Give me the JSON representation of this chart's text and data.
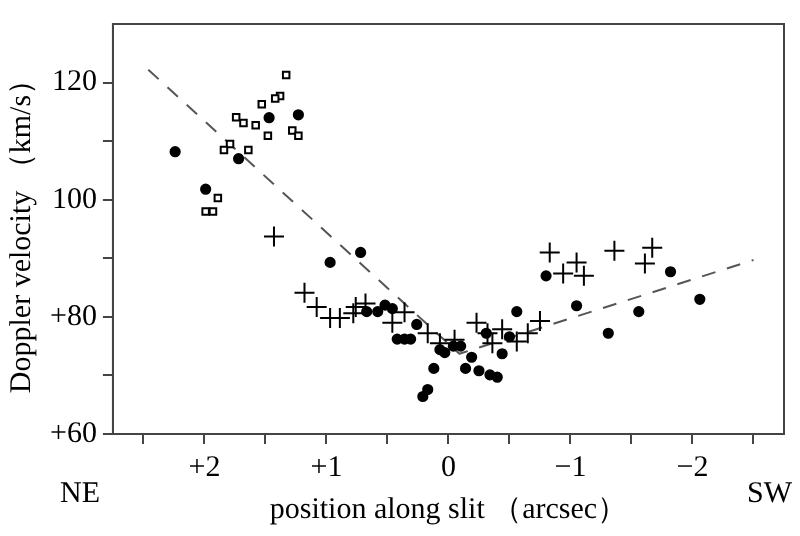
{
  "chart_data": {
    "type": "scatter",
    "xlabel": "position along slit （arcsec）",
    "ylabel": "Doppler velocity （km/s）",
    "xlim": [
      2.75,
      -2.75
    ],
    "ylim": [
      60,
      130
    ],
    "xticks": [
      {
        "value": 2.5,
        "label": null
      },
      {
        "value": 2,
        "label": "+2"
      },
      {
        "value": 1.5,
        "label": null
      },
      {
        "value": 1,
        "label": "+1"
      },
      {
        "value": 0.5,
        "label": null
      },
      0,
      {
        "value": -0.5,
        "label": null
      },
      {
        "value": -1,
        "label": "−1"
      },
      {
        "value": -1.5,
        "label": null
      },
      {
        "value": -2,
        "label": "−2"
      },
      {
        "value": -2.5,
        "label": null
      }
    ],
    "yticks": [
      {
        "value": 60,
        "label": "+60"
      },
      {
        "value": 70,
        "label": null
      },
      {
        "value": 80,
        "label": "+80"
      },
      {
        "value": 90,
        "label": null
      },
      100,
      {
        "value": 110,
        "label": null
      },
      120
    ],
    "grid": false,
    "legend": false,
    "annotations": [
      "NE",
      "SW"
    ],
    "series": [
      {
        "marker": "circle",
        "color": "#000000",
        "x": [
          2.24,
          1.47,
          1.23,
          1.72,
          1.99,
          0.72,
          0.97,
          0.67,
          0.58,
          0.52,
          0.46,
          0.26,
          0.42,
          0.36,
          0.31,
          0.07,
          0.03,
          -0.04,
          -0.1,
          -0.19,
          -0.14,
          -0.25,
          -0.34,
          -0.4,
          -0.44,
          -0.31,
          -0.5,
          -0.56,
          0.12,
          0.17,
          0.21,
          -0.8,
          -1.05,
          -1.31,
          -1.56,
          -1.82,
          -2.06
        ],
        "values": [
          108.2,
          114,
          114.5,
          107,
          101.8,
          91,
          89.3,
          80.9,
          80.9,
          82,
          81.4,
          78.7,
          76.2,
          76.2,
          76.2,
          74.4,
          73.9,
          75,
          75,
          73.1,
          71.2,
          70.8,
          70.1,
          69.7,
          73.7,
          77.2,
          76.6,
          80.9,
          71.2,
          67.6,
          66.4,
          87,
          81.9,
          77.2,
          80.9,
          87.7,
          83
        ]
      },
      {
        "marker": "square",
        "color": "#000000",
        "x": [
          1.33,
          1.38,
          1.42,
          1.53,
          1.74,
          1.68,
          1.58,
          1.48,
          1.28,
          1.23,
          1.79,
          1.84,
          1.64,
          1.89,
          1.99,
          1.93
        ],
        "values": [
          121.3,
          117.7,
          117.3,
          116.3,
          114.1,
          113.1,
          112.7,
          110.9,
          111.8,
          110.9,
          109.5,
          108.5,
          108.5,
          100.3,
          98,
          98
        ]
      },
      {
        "marker": "cross",
        "color": "#000000",
        "x": [
          1.43,
          1.18,
          1.08,
          0.97,
          0.89,
          0.78,
          0.76,
          0.68,
          0.36,
          0.46,
          0.17,
          0.07,
          -0.05,
          -0.23,
          -0.32,
          -0.36,
          -0.44,
          -0.56,
          -0.65,
          -0.75,
          -0.83,
          -0.94,
          -1.05,
          -1.11,
          -1.36,
          -1.61,
          -1.67
        ],
        "values": [
          93.7,
          84.1,
          81.7,
          79.8,
          79.8,
          80.6,
          81.7,
          82.3,
          80.8,
          79,
          77.2,
          75.5,
          76.1,
          79,
          77.2,
          75.5,
          77.9,
          75.8,
          77.2,
          79.3,
          91,
          87.4,
          89.3,
          87,
          91.3,
          89.1,
          91.8
        ]
      },
      {
        "type": "line",
        "marker": "none",
        "line_style": "dashed",
        "color": "#555555",
        "x": [
          2.46,
          -0.09,
          -2.5
        ],
        "values": [
          122.2,
          73.7,
          89.7
        ]
      }
    ]
  }
}
